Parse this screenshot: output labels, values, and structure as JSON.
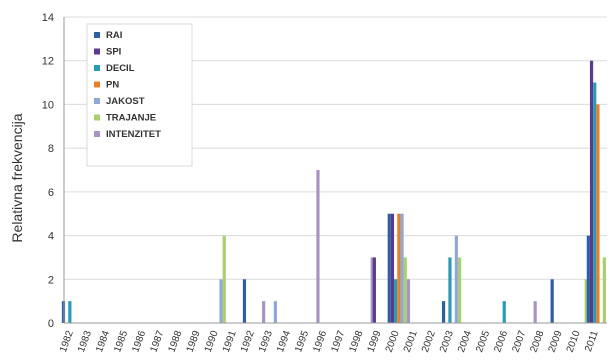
{
  "chart_data": {
    "type": "bar",
    "ylabel": "Relativna frekvencija",
    "xlabel": "",
    "ylim": [
      0,
      14
    ],
    "yticks": [
      0,
      2,
      4,
      6,
      8,
      10,
      12,
      14
    ],
    "grid": true,
    "legend_placement": "top-left",
    "categories": [
      "1982",
      "1983",
      "1984",
      "1985",
      "1986",
      "1987",
      "1988",
      "1989",
      "1990",
      "1991",
      "1992",
      "1993",
      "1994",
      "1995",
      "1996",
      "1997",
      "1998",
      "1999",
      "2000",
      "2001",
      "2002",
      "2003",
      "2004",
      "2005",
      "2006",
      "2007",
      "2008",
      "2009",
      "2010",
      "2011"
    ],
    "series": [
      {
        "name": "RAI",
        "color": "#2e5fa5",
        "values": [
          1,
          0,
          0,
          0,
          0,
          0,
          0,
          0,
          0,
          0,
          2,
          0,
          0,
          0,
          0,
          0,
          0,
          0,
          5,
          0,
          0,
          1,
          0,
          0,
          0,
          0,
          0,
          2,
          0,
          4
        ]
      },
      {
        "name": "SPI",
        "color": "#5b3a8e",
        "values": [
          0,
          0,
          0,
          0,
          0,
          0,
          0,
          0,
          0,
          0,
          0,
          0,
          0,
          0,
          0,
          0,
          0,
          3,
          5,
          0,
          0,
          0,
          0,
          0,
          0,
          0,
          0,
          0,
          0,
          12
        ]
      },
      {
        "name": "DECIL",
        "color": "#2a9bb5",
        "values": [
          1,
          0,
          0,
          0,
          0,
          0,
          0,
          0,
          0,
          0,
          0,
          0,
          0,
          0,
          0,
          0,
          0,
          0,
          2,
          0,
          0,
          3,
          0,
          0,
          1,
          0,
          0,
          0,
          0,
          11
        ]
      },
      {
        "name": "PN",
        "color": "#e8802a",
        "values": [
          0,
          0,
          0,
          0,
          0,
          0,
          0,
          0,
          0,
          0,
          0,
          0,
          0,
          0,
          0,
          0,
          0,
          0,
          5,
          0,
          0,
          0,
          0,
          0,
          0,
          0,
          0,
          0,
          0,
          10
        ]
      },
      {
        "name": "JAKOST",
        "color": "#8fa8d8",
        "values": [
          0,
          0,
          0,
          0,
          0,
          0,
          0,
          0,
          2,
          0,
          0,
          1,
          0,
          0,
          0,
          0,
          0,
          0,
          5,
          0,
          0,
          4,
          0,
          0,
          0,
          0,
          0,
          0,
          0,
          0
        ]
      },
      {
        "name": "TRAJANJE",
        "color": "#a9cf6e",
        "values": [
          0,
          0,
          0,
          0,
          0,
          0,
          0,
          0,
          4,
          0,
          0,
          0,
          0,
          0,
          0,
          0,
          0,
          0,
          3,
          0,
          0,
          3,
          0,
          0,
          0,
          0,
          0,
          0,
          2,
          3
        ]
      },
      {
        "name": "INTENZITET",
        "color": "#a794c4",
        "values": [
          0,
          0,
          0,
          0,
          0,
          0,
          0,
          0,
          0,
          0,
          1,
          0,
          0,
          7,
          0,
          0,
          3,
          0,
          2,
          0,
          0,
          0,
          0,
          0,
          0,
          1,
          0,
          0,
          0,
          0
        ]
      }
    ]
  }
}
